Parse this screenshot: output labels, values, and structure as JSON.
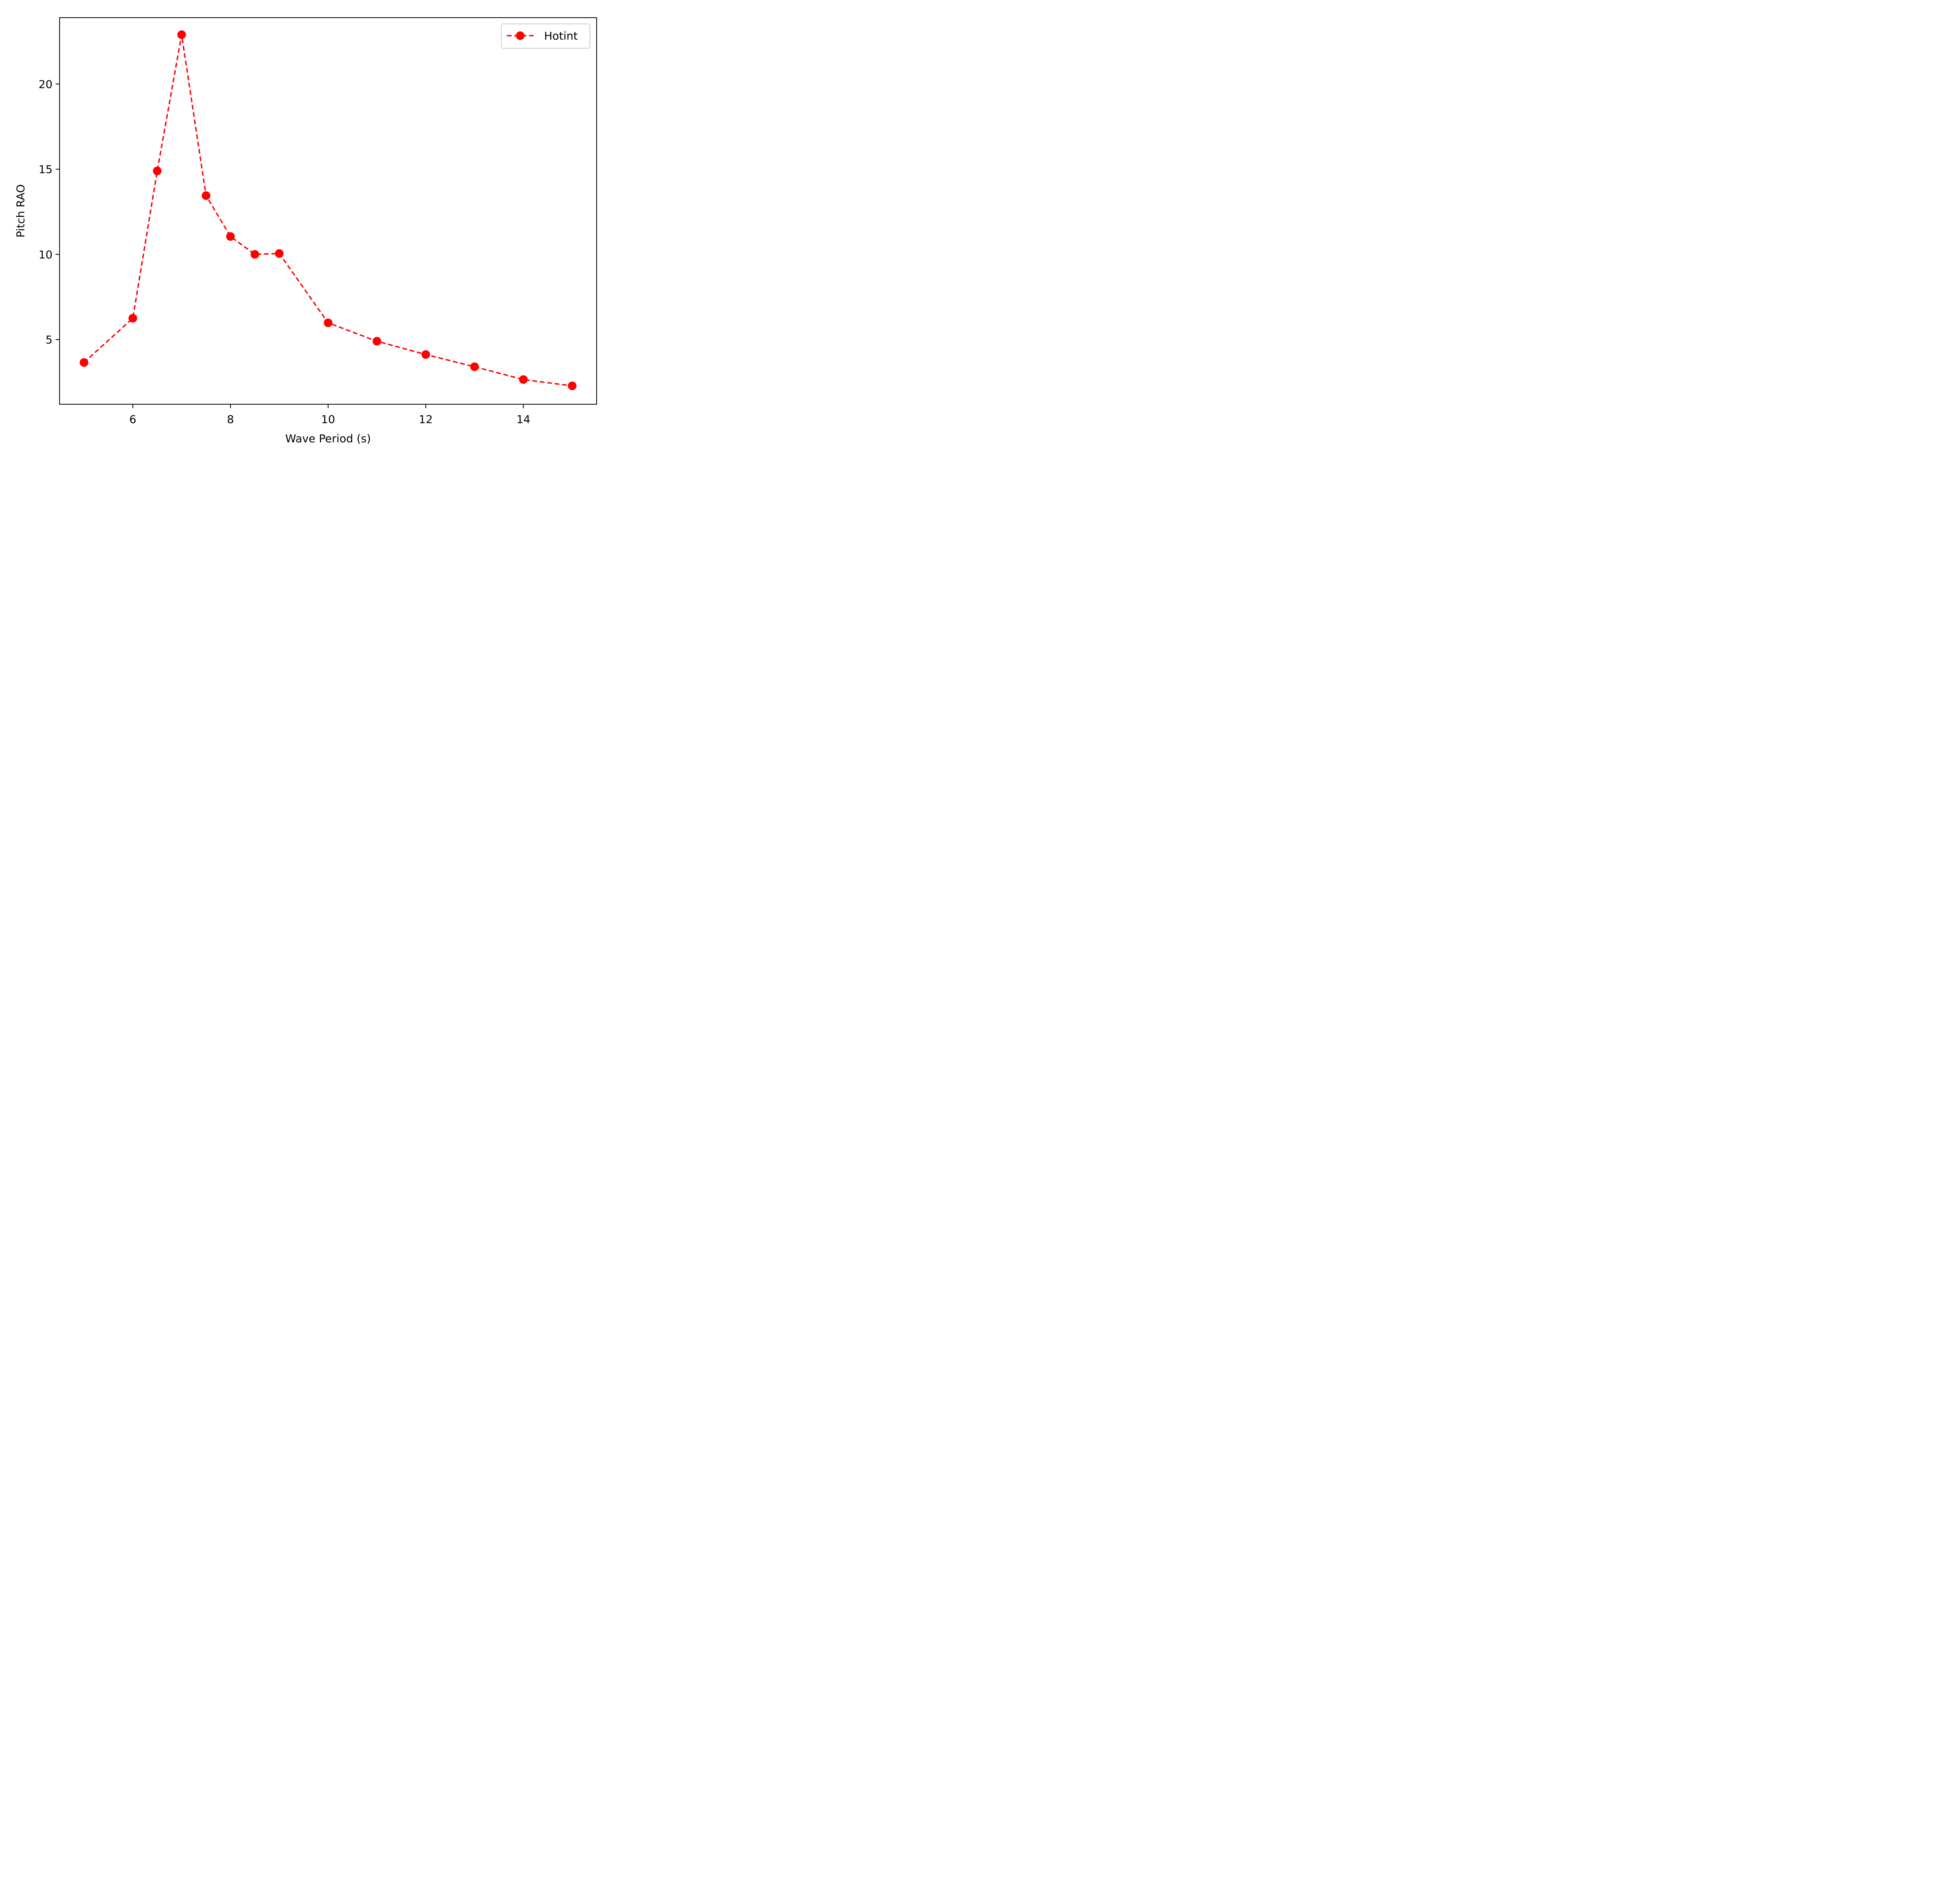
{
  "chart_data": {
    "type": "line",
    "title": "",
    "xlabel": "Wave Period (s)",
    "ylabel": "Pitch RAO",
    "xlim": [
      4.5,
      15.5
    ],
    "ylim": [
      1.2,
      23.9
    ],
    "xticks": [
      6,
      8,
      10,
      12,
      14
    ],
    "yticks": [
      5,
      10,
      15,
      20
    ],
    "grid": false,
    "legend_position": "top-right",
    "series": [
      {
        "name": "Hotint",
        "color": "#ff0000",
        "line_style": "dashed",
        "marker": "circle",
        "x": [
          5,
          6,
          6.5,
          7,
          7.5,
          8,
          8.5,
          9,
          10,
          11,
          12,
          13,
          14,
          15
        ],
        "y": [
          3.65,
          6.25,
          14.9,
          22.9,
          13.45,
          11.05,
          10.0,
          10.05,
          5.98,
          4.9,
          4.12,
          3.4,
          2.65,
          2.28
        ]
      }
    ]
  }
}
